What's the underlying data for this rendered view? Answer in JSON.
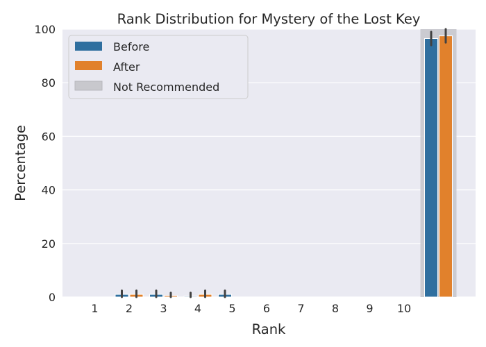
{
  "chart_data": {
    "type": "bar",
    "title": "Rank Distribution for Mystery of the Lost Key",
    "xlabel": "Rank",
    "ylabel": "Percentage",
    "ylim": [
      0,
      100
    ],
    "yticks": [
      0,
      20,
      40,
      60,
      80,
      100
    ],
    "grid": true,
    "legend_position": "top-left",
    "categories": [
      "1",
      "2",
      "3",
      "4",
      "5",
      "6",
      "7",
      "8",
      "9",
      "10",
      ""
    ],
    "series": [
      {
        "name": "Before",
        "color": "#2f6f9f",
        "values": [
          0,
          1,
          1,
          0.3,
          1,
          0,
          0,
          0,
          0,
          0,
          96.5
        ],
        "error_high": [
          0,
          2.4,
          2.4,
          1.6,
          2.4,
          0,
          0,
          0,
          0,
          0,
          99
        ]
      },
      {
        "name": "After",
        "color": "#e1812c",
        "values": [
          0,
          1,
          0.5,
          1,
          0,
          0,
          0,
          0,
          0,
          0,
          97.5
        ],
        "error_high": [
          0,
          2.4,
          1.6,
          2.4,
          0,
          0,
          0,
          0,
          0,
          0,
          100
        ]
      }
    ],
    "highlight": {
      "label": "Not Recommended",
      "category_index": 10,
      "color": "#c8c8cd"
    }
  }
}
